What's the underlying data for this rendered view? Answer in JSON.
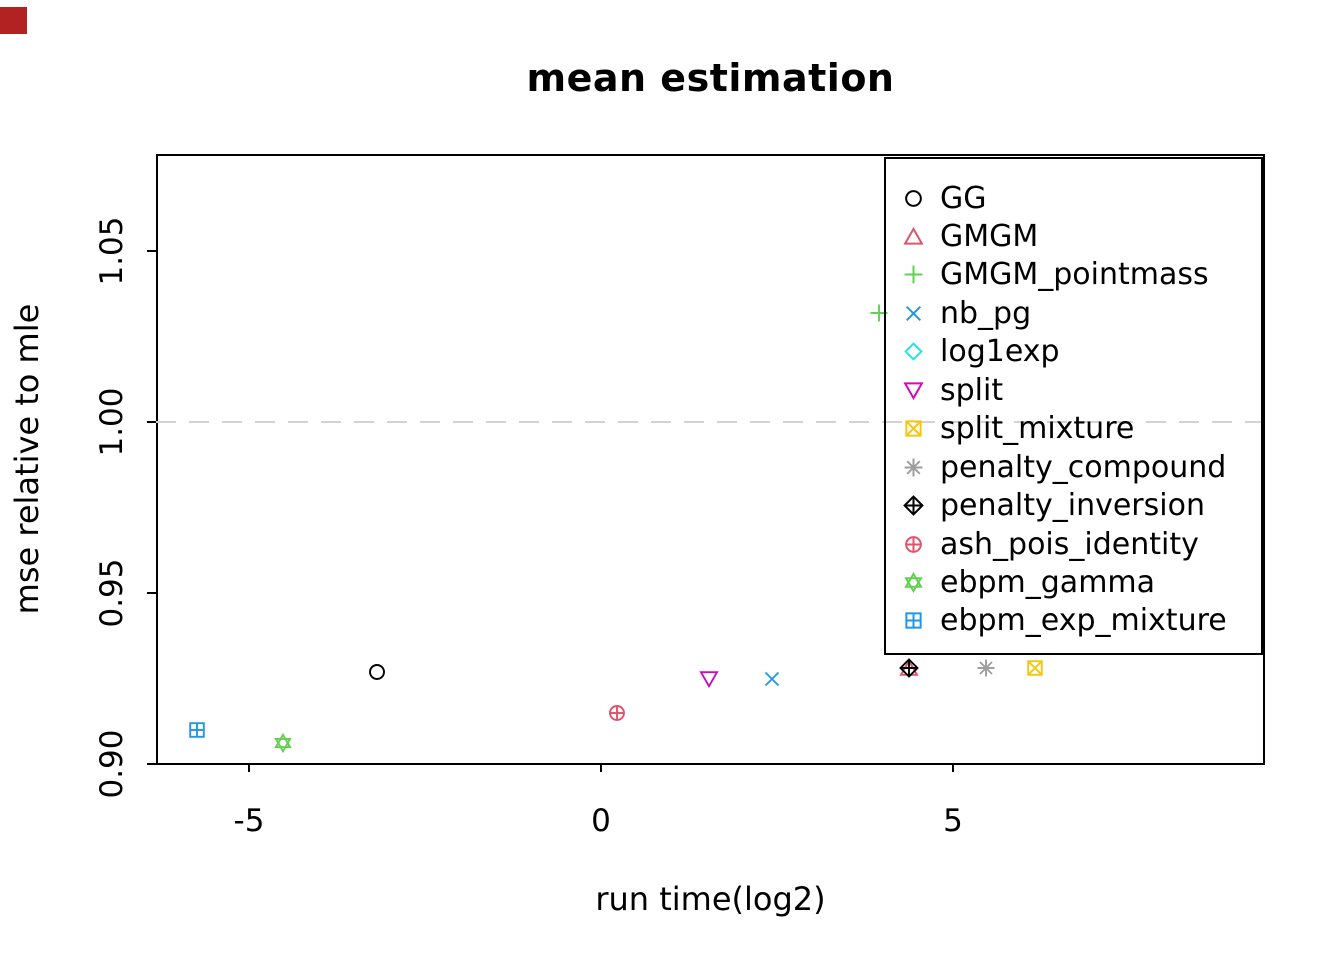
{
  "corner_marker": {
    "color": "#b22222"
  },
  "chart_data": {
    "type": "scatter",
    "title": "mean estimation",
    "xlabel": "run time(log2)",
    "ylabel": "mse relative to mle",
    "x_tick_labels": [
      "-5",
      "0",
      "5"
    ],
    "x_tick_values": [
      -5,
      0,
      5
    ],
    "y_tick_labels": [
      "0.90",
      "0.95",
      "1.00",
      "1.05"
    ],
    "y_tick_values": [
      0.9,
      0.95,
      1.0,
      1.05
    ],
    "xlim": [
      -6.3,
      9.4
    ],
    "ylim": [
      0.899,
      1.078
    ],
    "grid": false,
    "reference_line": {
      "y": 1.0,
      "style": "dashed",
      "color": "#d3d3d3"
    },
    "legend_position": "top-right",
    "series": [
      {
        "name": "GG",
        "marker": "circle",
        "color": "#000000",
        "point": [
          -3.18,
          0.927
        ]
      },
      {
        "name": "GMGM",
        "marker": "triangle-up",
        "color": "#DF536B",
        "point": [
          4.37,
          0.928
        ]
      },
      {
        "name": "GMGM_pointmass",
        "marker": "plus",
        "color": "#61D04F",
        "point": [
          3.95,
          1.032
        ]
      },
      {
        "name": "nb_pg",
        "marker": "x",
        "color": "#2297E6",
        "point": [
          2.43,
          0.925
        ]
      },
      {
        "name": "log1exp",
        "marker": "diamond",
        "color": "#28E2E5",
        "point": null
      },
      {
        "name": "split",
        "marker": "triangle-down",
        "color": "#CD0BBC",
        "point": [
          1.53,
          0.925
        ]
      },
      {
        "name": "split_mixture",
        "marker": "square-x",
        "color": "#F5C710",
        "point": [
          6.16,
          0.928
        ]
      },
      {
        "name": "penalty_compound",
        "marker": "asterisk",
        "color": "#9E9E9E",
        "point": [
          5.47,
          0.928
        ]
      },
      {
        "name": "penalty_inversion",
        "marker": "diamond-plus",
        "color": "#000000",
        "point": [
          4.37,
          0.928
        ]
      },
      {
        "name": "ash_pois_identity",
        "marker": "circle-plus",
        "color": "#DF536B",
        "point": [
          0.23,
          0.915
        ]
      },
      {
        "name": "ebpm_gamma",
        "marker": "star6",
        "color": "#61D04F",
        "point": [
          -4.52,
          0.906
        ]
      },
      {
        "name": "ebpm_exp_mixture",
        "marker": "square-plus",
        "color": "#2297E6",
        "point": [
          -5.74,
          0.91
        ]
      }
    ]
  }
}
